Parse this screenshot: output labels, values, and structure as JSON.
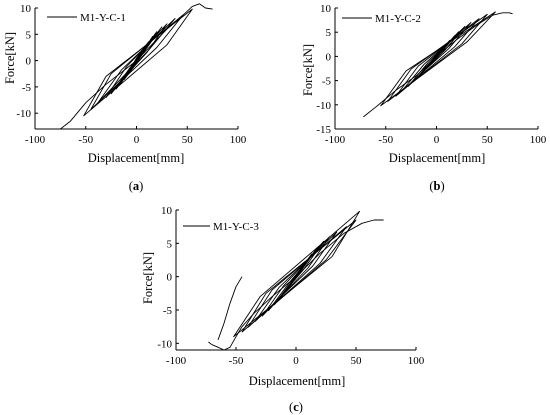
{
  "figure": {
    "panels": [
      {
        "label_open": "(",
        "label_letter": "a",
        "label_close": ")"
      },
      {
        "label_open": "(",
        "label_letter": "b",
        "label_close": ")"
      },
      {
        "label_open": "(",
        "label_letter": "c",
        "label_close": ")"
      }
    ]
  },
  "chart_data": [
    {
      "type": "line",
      "xlabel": "Displacement[mm]",
      "ylabel": "Force[kN]",
      "xlim": [
        -100,
        100
      ],
      "ylim": [
        -13,
        10
      ],
      "xticks": [
        -100,
        -50,
        0,
        50,
        100
      ],
      "yticks": [
        -10,
        -5,
        0,
        5,
        10
      ],
      "grid": false,
      "legend": "top-left",
      "series": [
        {
          "name": "M1-Y-C-1",
          "loops": [
            {
              "x": [
                -5,
                0,
                5,
                0,
                -5
              ],
              "y": [
                -1.5,
                -0.3,
                1.5,
                0.3,
                -1.5
              ]
            },
            {
              "x": [
                -8,
                0,
                8,
                0,
                -8
              ],
              "y": [
                -2.6,
                -0.4,
                2.6,
                0.4,
                -2.6
              ]
            },
            {
              "x": [
                -12,
                0,
                12,
                0,
                -12
              ],
              "y": [
                -3.6,
                -0.5,
                3.6,
                0.5,
                -3.6
              ]
            },
            {
              "x": [
                -16,
                -2,
                16,
                2,
                -16
              ],
              "y": [
                -4.5,
                -0.6,
                4.6,
                0.6,
                -4.5
              ]
            },
            {
              "x": [
                -20,
                -4,
                20,
                4,
                -20
              ],
              "y": [
                -5.4,
                -0.8,
                5.5,
                0.8,
                -5.4
              ]
            },
            {
              "x": [
                -25,
                -5,
                25,
                5,
                -25
              ],
              "y": [
                -6.3,
                -1,
                6.4,
                1,
                -6.3
              ]
            },
            {
              "x": [
                -30,
                -10,
                30,
                10,
                -30
              ],
              "y": [
                -7,
                -1.2,
                7,
                1.5,
                -7
              ]
            },
            {
              "x": [
                -38,
                -15,
                38,
                12,
                -38
              ],
              "y": [
                -8,
                -1.8,
                8,
                2,
                -8
              ]
            },
            {
              "x": [
                -45,
                -25,
                46,
                20,
                -45
              ],
              "y": [
                -9.3,
                -2.5,
                8.7,
                2.5,
                -9.3
              ]
            },
            {
              "x": [
                -52,
                -30,
                55,
                30,
                -52
              ],
              "y": [
                -10.5,
                -3,
                9.8,
                3,
                -10.5
              ]
            }
          ],
          "envelope": {
            "x": [
              -75,
              -65,
              -50,
              -30,
              -10,
              0,
              15,
              30,
              45,
              55,
              62,
              68,
              75
            ],
            "y": [
              -13,
              -11.5,
              -8,
              -4.5,
              -1.5,
              0,
              3,
              6,
              8.5,
              10.3,
              10.8,
              10,
              9.8
            ]
          }
        }
      ]
    },
    {
      "type": "line",
      "xlabel": "Displacement[mm]",
      "ylabel": "Force[kN]",
      "xlim": [
        -100,
        100
      ],
      "ylim": [
        -15,
        10
      ],
      "xticks": [
        -100,
        -50,
        0,
        50,
        100
      ],
      "yticks": [
        -15,
        -10,
        -5,
        0,
        5,
        10
      ],
      "grid": false,
      "legend": "top-left",
      "series": [
        {
          "name": "M1-Y-C-2",
          "loops": [
            {
              "x": [
                -5,
                0,
                5,
                0,
                -5
              ],
              "y": [
                -1.2,
                -0.3,
                1.3,
                0.3,
                -1.2
              ]
            },
            {
              "x": [
                -9,
                0,
                9,
                0,
                -9
              ],
              "y": [
                -2.2,
                -0.4,
                2.3,
                0.4,
                -2.2
              ]
            },
            {
              "x": [
                -13,
                -1,
                13,
                1,
                -13
              ],
              "y": [
                -3.2,
                -0.5,
                3.3,
                0.5,
                -3.2
              ]
            },
            {
              "x": [
                -18,
                -3,
                18,
                3,
                -18
              ],
              "y": [
                -4.3,
                -0.7,
                4.3,
                0.7,
                -4.3
              ]
            },
            {
              "x": [
                -22,
                -5,
                22,
                5,
                -22
              ],
              "y": [
                -5.1,
                -0.9,
                5.1,
                0.9,
                -5.1
              ]
            },
            {
              "x": [
                -28,
                -8,
                28,
                8,
                -28
              ],
              "y": [
                -6.2,
                -1.2,
                6.2,
                1.2,
                -6.2
              ]
            },
            {
              "x": [
                -34,
                -12,
                34,
                12,
                -34
              ],
              "y": [
                -7.1,
                -1.6,
                7,
                1.6,
                -7.1
              ]
            },
            {
              "x": [
                -40,
                -18,
                42,
                18,
                -40
              ],
              "y": [
                -8.2,
                -2,
                7.8,
                2,
                -8.2
              ]
            },
            {
              "x": [
                -48,
                -25,
                50,
                25,
                -48
              ],
              "y": [
                -9.3,
                -2.6,
                8.7,
                2.6,
                -9.3
              ]
            },
            {
              "x": [
                -55,
                -30,
                58,
                30,
                -55
              ],
              "y": [
                -10.2,
                -3,
                9.2,
                3,
                -10.2
              ]
            }
          ],
          "envelope": {
            "x": [
              -72,
              -60,
              -40,
              -20,
              0,
              20,
              40,
              55,
              65,
              72,
              75
            ],
            "y": [
              -12.5,
              -10.5,
              -7,
              -4,
              0,
              3.5,
              6.5,
              8.5,
              9,
              9,
              8.8
            ]
          }
        }
      ]
    },
    {
      "type": "line",
      "xlabel": "Displacement[mm]",
      "ylabel": "Force[kN]",
      "xlim": [
        -100,
        100
      ],
      "ylim": [
        -11,
        10
      ],
      "xticks": [
        -100,
        -50,
        0,
        50,
        100
      ],
      "yticks": [
        -10,
        -5,
        0,
        5,
        10
      ],
      "grid": false,
      "legend": "top-left",
      "series": [
        {
          "name": "M1-Y-C-3",
          "loops": [
            {
              "x": [
                -5,
                0,
                5,
                0,
                -5
              ],
              "y": [
                -1.3,
                -0.2,
                1.4,
                0.2,
                -1.3
              ]
            },
            {
              "x": [
                -9,
                -1,
                9,
                1,
                -9
              ],
              "y": [
                -2.3,
                -0.4,
                2.4,
                0.4,
                -2.3
              ]
            },
            {
              "x": [
                -13,
                -2,
                13,
                2,
                -13
              ],
              "y": [
                -3.2,
                -0.6,
                3.4,
                0.6,
                -3.2
              ]
            },
            {
              "x": [
                -18,
                -4,
                18,
                4,
                -18
              ],
              "y": [
                -4.2,
                -0.8,
                4.4,
                0.8,
                -4.2
              ]
            },
            {
              "x": [
                -23,
                -6,
                23,
                6,
                -23
              ],
              "y": [
                -5.1,
                -1,
                5.3,
                1,
                -5.1
              ]
            },
            {
              "x": [
                -28,
                -10,
                28,
                10,
                -28
              ],
              "y": [
                -5.9,
                -1.3,
                6,
                1.3,
                -5.9
              ]
            },
            {
              "x": [
                -34,
                -14,
                34,
                14,
                -34
              ],
              "y": [
                -6.7,
                -1.6,
                6.7,
                1.6,
                -6.7
              ]
            },
            {
              "x": [
                -40,
                -20,
                42,
                20,
                -40
              ],
              "y": [
                -7.6,
                -2,
                7.5,
                2,
                -7.6
              ]
            },
            {
              "x": [
                -45,
                -25,
                50,
                25,
                -45
              ],
              "y": [
                -8.3,
                -2.5,
                8.5,
                2.5,
                -8.3
              ]
            },
            {
              "x": [
                -52,
                -30,
                53,
                30,
                -52
              ],
              "y": [
                -9,
                -3,
                9.8,
                3,
                -9
              ]
            }
          ],
          "envelope": {
            "x": [
              -73,
              -70,
              -66,
              -60,
              -55,
              -50,
              -45,
              -40,
              -35,
              -20,
              0,
              20,
              40,
              55,
              65,
              73
            ],
            "y": [
              -9.8,
              -10.2,
              -10.5,
              -11,
              -10.6,
              -9,
              -7.5,
              -6.5,
              -5.5,
              -3,
              0,
              3.5,
              6.5,
              8,
              8.5,
              8.5
            ]
          },
          "tail": {
            "x": [
              -65,
              -60,
              -55,
              -50,
              -45
            ],
            "y": [
              -9.5,
              -7,
              -4,
              -1.5,
              0
            ]
          }
        }
      ]
    }
  ]
}
